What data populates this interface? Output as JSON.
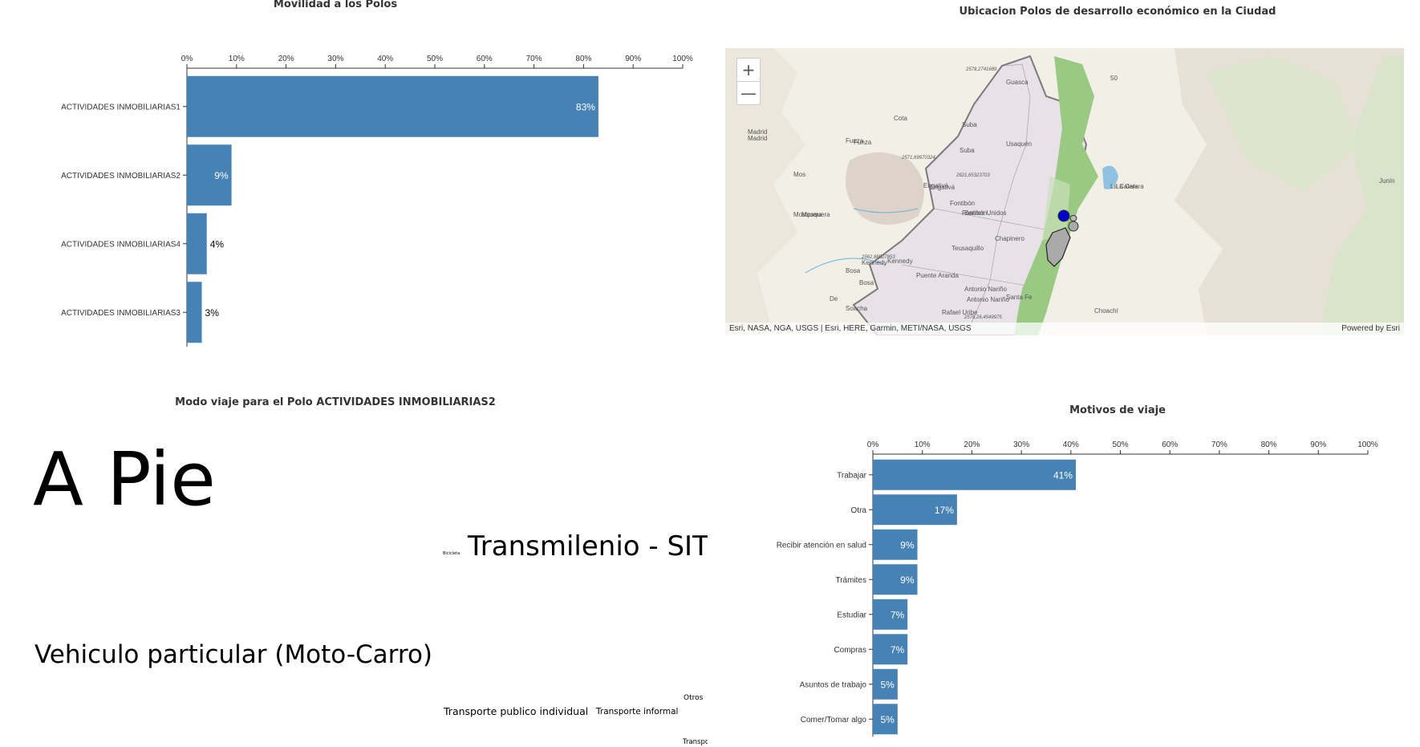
{
  "titles": {
    "movilidad": "Movilidad a los Polos",
    "map": "Ubicacion Polos de desarrollo económico en la Ciudad",
    "treemap": "Modo viaje para el Polo ACTIVIDADES INMOBILIARIAS2",
    "motivos": "Motivos de viaje"
  },
  "chart_data": [
    {
      "type": "bar",
      "orientation": "horizontal",
      "categories": [
        "ACTIVIDADES INMOBILIARIAS1",
        "ACTIVIDADES INMOBILIARIAS2",
        "ACTIVIDADES INMOBILIARIAS4",
        "ACTIVIDADES INMOBILIARIAS3"
      ],
      "values": [
        83,
        9,
        4,
        3
      ],
      "value_labels": [
        "83%",
        "9%",
        "4%",
        "3%"
      ],
      "xticks": [
        "0%",
        "10%",
        "20%",
        "30%",
        "40%",
        "50%",
        "60%",
        "70%",
        "80%",
        "90%",
        "100%"
      ],
      "xlim": [
        0,
        100
      ],
      "title": "Movilidad a los Polos",
      "color": "#4682b4",
      "grid": false
    },
    {
      "type": "treemap",
      "title": "Modo viaje para el Polo ACTIVIDADES INMOBILIARIAS2",
      "cells": [
        {
          "label": "A Pie",
          "color": "#1f77b4"
        },
        {
          "label": "Vehiculo particular (Moto-Carro)",
          "color": "#ff7f0e"
        },
        {
          "label": "Bicicleta",
          "color": "#2ca02c"
        },
        {
          "label": "Transmilenio - SITP",
          "color": "#d62728"
        },
        {
          "label": "Transporte publico individual",
          "color": "#9467bd"
        },
        {
          "label": "Transporte informal",
          "color": "#8c564b"
        },
        {
          "label": "Otros",
          "color": "#e377c2"
        },
        {
          "label": "Transporte",
          "color": "#7f7f7f"
        }
      ]
    },
    {
      "type": "bar",
      "orientation": "horizontal",
      "categories": [
        "Trabajar",
        "Otra",
        "Recibir atención en salud",
        "Trámites",
        "Estudiar",
        "Compras",
        "Asuntos de trabajo",
        "Comer/Tomar algo"
      ],
      "values": [
        41,
        17,
        9,
        9,
        7,
        7,
        5,
        5
      ],
      "value_labels": [
        "41%",
        "17%",
        "9%",
        "9%",
        "7%",
        "7%",
        "5%",
        "5%"
      ],
      "xticks": [
        "0%",
        "10%",
        "20%",
        "30%",
        "40%",
        "50%",
        "60%",
        "70%",
        "80%",
        "90%",
        "100%"
      ],
      "xlim": [
        0,
        100
      ],
      "title": "Motivos de viaje",
      "color": "#4682b4",
      "grid": false
    }
  ],
  "map": {
    "zoom_in": "+",
    "zoom_out": "—",
    "attribution": "Esri, NASA, NGA, USGS | Esri, HERE, Garmin, METI/NASA, USGS",
    "powered_by": "Powered by Esri",
    "places": [
      {
        "name": "Madrid"
      },
      {
        "name": "Madrid"
      },
      {
        "name": "Cota"
      },
      {
        "name": "Suba"
      },
      {
        "name": "Suba"
      },
      {
        "name": "Usaquén"
      },
      {
        "name": "Funza"
      },
      {
        "name": "Funza"
      },
      {
        "name": "Mosquera"
      },
      {
        "name": "Mosquera"
      },
      {
        "name": "Engativá"
      },
      {
        "name": "Engativá"
      },
      {
        "name": "Fontibón"
      },
      {
        "name": "Fontibón"
      },
      {
        "name": "Barrios Unidos"
      },
      {
        "name": "Chapinero"
      },
      {
        "name": "Teusaquillo"
      },
      {
        "name": "Kennedy"
      },
      {
        "name": "Kennedy"
      },
      {
        "name": "Bosa"
      },
      {
        "name": "Bosa"
      },
      {
        "name": "Puente Aranda"
      },
      {
        "name": "Antonio Nariño"
      },
      {
        "name": "Antonio Nariño"
      },
      {
        "name": "Santa Fe"
      },
      {
        "name": "Soacha"
      },
      {
        "name": "Rafael Uribe"
      },
      {
        "name": "Mos"
      },
      {
        "name": "De"
      },
      {
        "name": "Guasca"
      },
      {
        "name": "La Calera"
      },
      {
        "name": "La Calera"
      },
      {
        "name": "Choachí"
      },
      {
        "name": "Junín"
      },
      {
        "name": "50"
      }
    ],
    "values": [
      {
        "text": "2578,2741689"
      },
      {
        "text": "2571,69970324"
      },
      {
        "text": "2621,65323703"
      },
      {
        "text": "2562,88527853"
      },
      {
        "text": "2578,26,4549975"
      }
    ]
  }
}
